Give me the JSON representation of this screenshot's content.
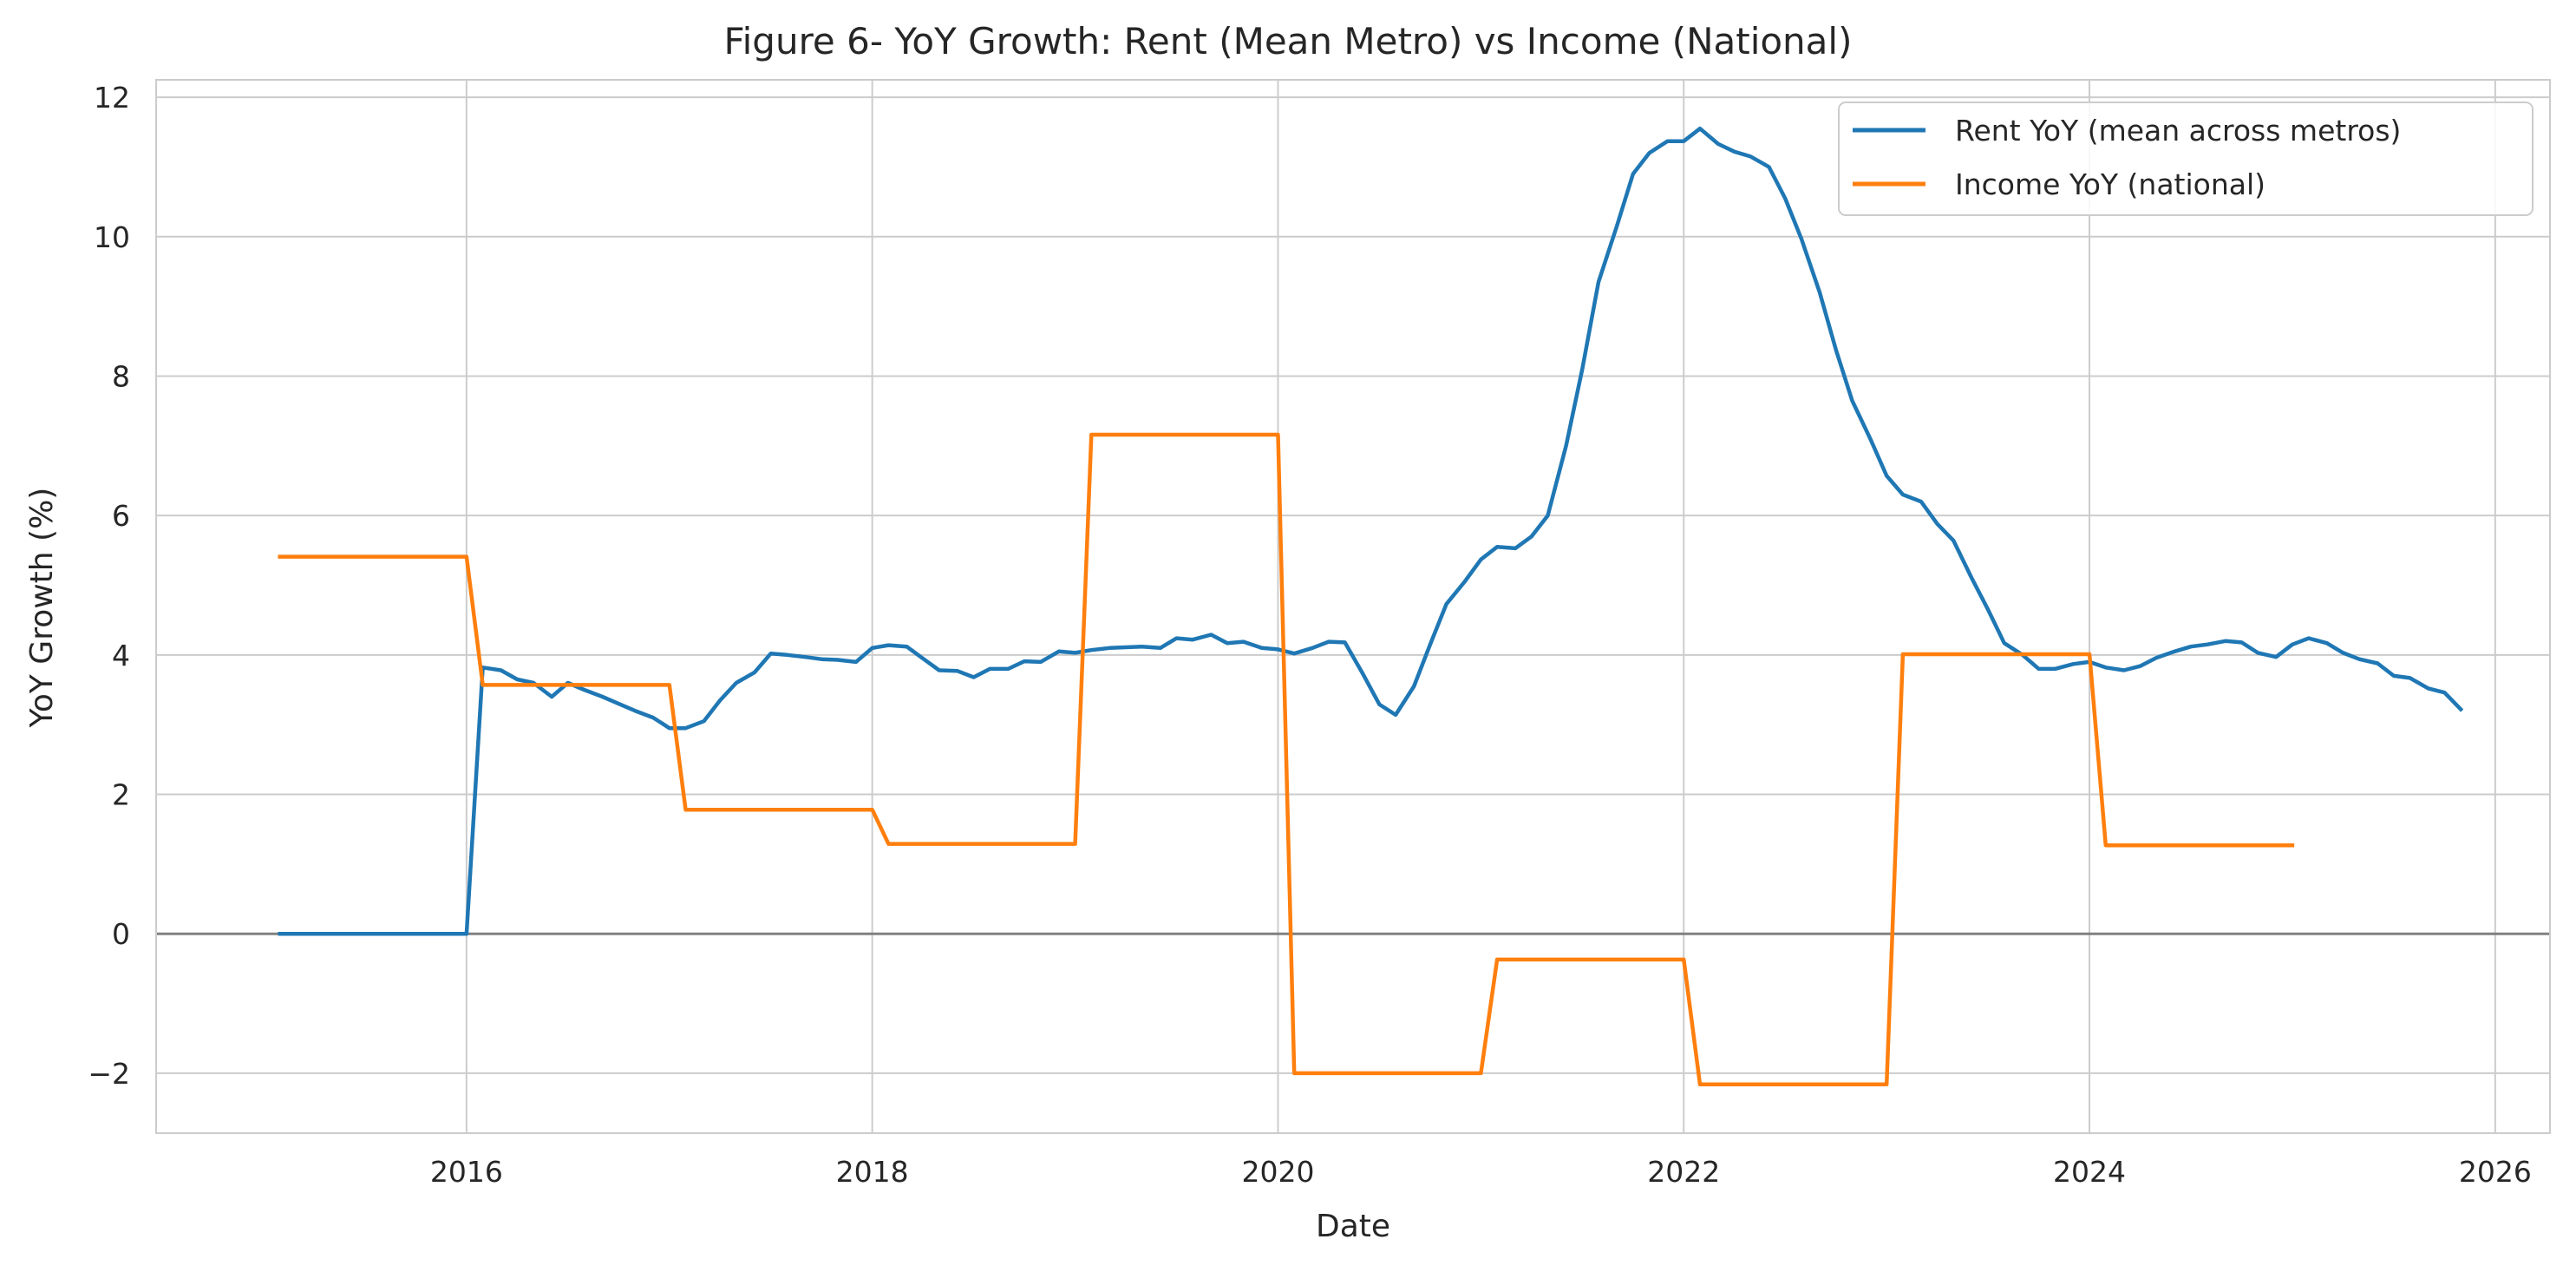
{
  "chart_data": {
    "type": "line",
    "title": "Figure 6- YoY Growth: Rent (Mean Metro) vs Income (National)",
    "xlabel": "Date",
    "ylabel": "YoY Growth (%)",
    "xlim": [
      2014.47,
      2026.27
    ],
    "ylim": [
      -2.86,
      12.25
    ],
    "x_ticks": [
      "2016",
      "2018",
      "2020",
      "2022",
      "2024",
      "2026"
    ],
    "y_ticks": [
      "−2",
      "0",
      "2",
      "4",
      "6",
      "8",
      "10",
      "12"
    ],
    "grid": true,
    "zero_line": true,
    "legend_position": "top-right",
    "series": [
      {
        "name": "Rent YoY (mean across metros)",
        "color": "#1f77b4",
        "points": [
          [
            2015.08,
            0
          ],
          [
            2016.0,
            0
          ],
          [
            2016.08,
            3.82
          ],
          [
            2016.17,
            3.78
          ],
          [
            2016.25,
            3.65
          ],
          [
            2016.33,
            3.6
          ],
          [
            2016.42,
            3.4
          ],
          [
            2016.5,
            3.6
          ],
          [
            2016.58,
            3.5
          ],
          [
            2016.67,
            3.4
          ],
          [
            2016.75,
            3.3
          ],
          [
            2016.83,
            3.2
          ],
          [
            2016.92,
            3.1
          ],
          [
            2017.0,
            2.95
          ],
          [
            2017.08,
            2.95
          ],
          [
            2017.17,
            3.05
          ],
          [
            2017.25,
            3.35
          ],
          [
            2017.33,
            3.6
          ],
          [
            2017.42,
            3.75
          ],
          [
            2017.5,
            4.02
          ],
          [
            2017.58,
            4.0
          ],
          [
            2017.67,
            3.97
          ],
          [
            2017.75,
            3.94
          ],
          [
            2017.83,
            3.93
          ],
          [
            2017.92,
            3.9
          ],
          [
            2018.0,
            4.1
          ],
          [
            2018.08,
            4.14
          ],
          [
            2018.17,
            4.12
          ],
          [
            2018.25,
            3.95
          ],
          [
            2018.33,
            3.78
          ],
          [
            2018.42,
            3.77
          ],
          [
            2018.5,
            3.68
          ],
          [
            2018.58,
            3.8
          ],
          [
            2018.67,
            3.8
          ],
          [
            2018.75,
            3.91
          ],
          [
            2018.83,
            3.9
          ],
          [
            2018.92,
            4.05
          ],
          [
            2019.0,
            4.03
          ],
          [
            2019.08,
            4.07
          ],
          [
            2019.17,
            4.1
          ],
          [
            2019.25,
            4.11
          ],
          [
            2019.33,
            4.12
          ],
          [
            2019.42,
            4.1
          ],
          [
            2019.5,
            4.24
          ],
          [
            2019.58,
            4.22
          ],
          [
            2019.67,
            4.29
          ],
          [
            2019.75,
            4.17
          ],
          [
            2019.83,
            4.19
          ],
          [
            2019.92,
            4.1
          ],
          [
            2020.0,
            4.08
          ],
          [
            2020.08,
            4.02
          ],
          [
            2020.17,
            4.1
          ],
          [
            2020.25,
            4.19
          ],
          [
            2020.33,
            4.18
          ],
          [
            2020.42,
            3.72
          ],
          [
            2020.5,
            3.29
          ],
          [
            2020.58,
            3.14
          ],
          [
            2020.67,
            3.55
          ],
          [
            2020.75,
            4.15
          ],
          [
            2020.83,
            4.73
          ],
          [
            2020.92,
            5.05
          ],
          [
            2021.0,
            5.37
          ],
          [
            2021.08,
            5.55
          ],
          [
            2021.17,
            5.53
          ],
          [
            2021.25,
            5.7
          ],
          [
            2021.33,
            6.0
          ],
          [
            2021.42,
            7.0
          ],
          [
            2021.5,
            8.1
          ],
          [
            2021.58,
            9.35
          ],
          [
            2021.67,
            10.15
          ],
          [
            2021.75,
            10.9
          ],
          [
            2021.83,
            11.2
          ],
          [
            2021.92,
            11.37
          ],
          [
            2022.0,
            11.37
          ],
          [
            2022.08,
            11.55
          ],
          [
            2022.17,
            11.33
          ],
          [
            2022.25,
            11.22
          ],
          [
            2022.33,
            11.15
          ],
          [
            2022.42,
            11.0
          ],
          [
            2022.5,
            10.55
          ],
          [
            2022.58,
            9.97
          ],
          [
            2022.67,
            9.2
          ],
          [
            2022.75,
            8.38
          ],
          [
            2022.83,
            7.65
          ],
          [
            2022.92,
            7.1
          ],
          [
            2023.0,
            6.57
          ],
          [
            2023.08,
            6.3
          ],
          [
            2023.17,
            6.2
          ],
          [
            2023.25,
            5.88
          ],
          [
            2023.33,
            5.64
          ],
          [
            2023.42,
            5.1
          ],
          [
            2023.5,
            4.65
          ],
          [
            2023.58,
            4.17
          ],
          [
            2023.67,
            4.0
          ],
          [
            2023.75,
            3.8
          ],
          [
            2023.83,
            3.8
          ],
          [
            2023.92,
            3.87
          ],
          [
            2024.0,
            3.9
          ],
          [
            2024.08,
            3.82
          ],
          [
            2024.17,
            3.78
          ],
          [
            2024.25,
            3.84
          ],
          [
            2024.33,
            3.96
          ],
          [
            2024.42,
            4.05
          ],
          [
            2024.5,
            4.12
          ],
          [
            2024.58,
            4.15
          ],
          [
            2024.67,
            4.2
          ],
          [
            2024.75,
            4.18
          ],
          [
            2024.83,
            4.03
          ],
          [
            2024.92,
            3.97
          ],
          [
            2025.0,
            4.15
          ],
          [
            2025.08,
            4.24
          ],
          [
            2025.17,
            4.17
          ],
          [
            2025.25,
            4.03
          ],
          [
            2025.33,
            3.94
          ],
          [
            2025.42,
            3.88
          ],
          [
            2025.5,
            3.7
          ],
          [
            2025.58,
            3.67
          ],
          [
            2025.67,
            3.52
          ],
          [
            2025.75,
            3.46
          ],
          [
            2025.83,
            3.22
          ]
        ]
      },
      {
        "name": "Income YoY (national)",
        "color": "#ff7f0e",
        "points": [
          [
            2015.08,
            5.41
          ],
          [
            2016.0,
            5.41
          ],
          [
            2016.08,
            3.57
          ],
          [
            2017.0,
            3.57
          ],
          [
            2017.08,
            1.78
          ],
          [
            2018.0,
            1.78
          ],
          [
            2018.08,
            1.29
          ],
          [
            2019.0,
            1.29
          ],
          [
            2019.08,
            7.16
          ],
          [
            2020.0,
            7.16
          ],
          [
            2020.08,
            -2.0
          ],
          [
            2021.0,
            -2.0
          ],
          [
            2021.08,
            -0.37
          ],
          [
            2022.0,
            -0.37
          ],
          [
            2022.08,
            -2.16
          ],
          [
            2023.0,
            -2.16
          ],
          [
            2023.08,
            4.01
          ],
          [
            2024.0,
            4.01
          ],
          [
            2024.08,
            1.27
          ],
          [
            2025.0,
            1.27
          ]
        ]
      }
    ]
  }
}
